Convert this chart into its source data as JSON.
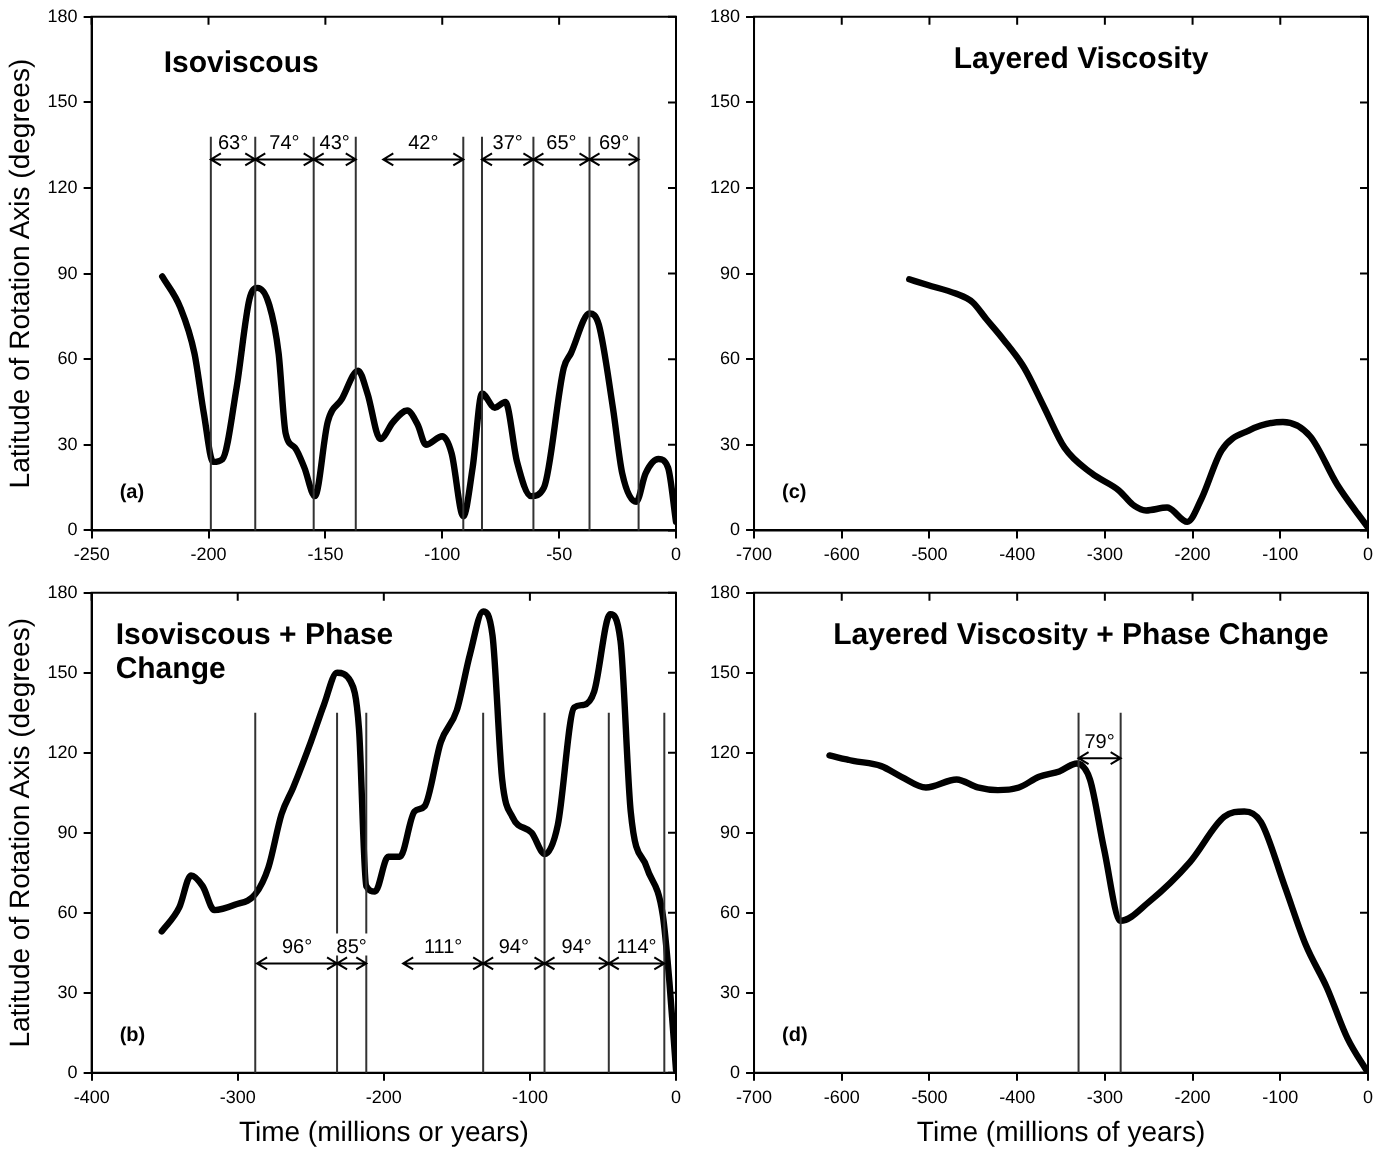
{
  "chart_data": [
    {
      "type": "line",
      "title": "Isoviscous",
      "ylabel": "Latitude of Rotation Axis (degrees)",
      "xlim": [
        -250,
        0
      ],
      "xticks": [
        -250,
        -200,
        -150,
        -100,
        -50,
        0
      ],
      "ylim": [
        0,
        180
      ],
      "yticks": [
        0,
        30,
        60,
        90,
        120,
        150,
        180
      ],
      "grid": false,
      "legend": false,
      "marker": "none",
      "line_style": "solid",
      "series": [
        {
          "color": "#000000",
          "x": [
            -219.8,
            -212,
            -206,
            -202,
            -198,
            -194,
            -188,
            -182.5,
            -179,
            -174,
            -170,
            -167,
            -163,
            -159,
            -154.5,
            -149,
            -143,
            -136,
            -132,
            -126.5,
            -121,
            -115,
            -110.5,
            -107,
            -100,
            -96,
            -91,
            -87,
            -83,
            -77.5,
            -73,
            -68,
            -62,
            -56.5,
            -48,
            -45,
            -37,
            -33,
            -27,
            -23,
            -17,
            -13,
            -7.5,
            -3.4,
            0
          ],
          "values": [
            89,
            78,
            62,
            41,
            24,
            25,
            50,
            81,
            85,
            79,
            62,
            34,
            29,
            22,
            12,
            38,
            46,
            56,
            48,
            32,
            38,
            42,
            37,
            30,
            33,
            27,
            5,
            22,
            48,
            43,
            45,
            24,
            12,
            15,
            57,
            62,
            76,
            72,
            43,
            20,
            10,
            20,
            25,
            22,
            3
          ]
        }
      ],
      "ref_lines": [
        {
          "axis": "x",
          "value": -199
        },
        {
          "axis": "x",
          "value": -180
        },
        {
          "axis": "x",
          "value": -155
        },
        {
          "axis": "x",
          "value": -137
        },
        {
          "axis": "x",
          "value": -91
        },
        {
          "axis": "x",
          "value": -83
        },
        {
          "axis": "x",
          "value": -61
        },
        {
          "axis": "x",
          "value": -37
        },
        {
          "axis": "x",
          "value": -16
        }
      ],
      "annotations": [
        "(a)",
        {
          "text": "63°",
          "x": -180,
          "y": 130
        },
        {
          "text": "74°",
          "x": -155,
          "y": 130
        },
        {
          "text": "43°",
          "x": -137,
          "y": 130
        },
        {
          "text": "42°",
          "x": -91,
          "y": 130
        },
        {
          "text": "37°",
          "x": -61,
          "y": 130
        },
        {
          "text": "65°",
          "x": -37,
          "y": 130
        },
        {
          "text": "69°",
          "x": -16,
          "y": 130
        }
      ]
    },
    {
      "type": "line",
      "title": "Layered Viscosity",
      "xlim": [
        -700,
        0
      ],
      "xticks": [
        -700,
        -600,
        -500,
        -400,
        -300,
        -200,
        -100,
        0
      ],
      "ylim": [
        0,
        180
      ],
      "yticks": [
        0,
        30,
        60,
        90,
        120,
        150,
        180
      ],
      "grid": false,
      "legend": false,
      "marker": "none",
      "line_style": "solid",
      "series": [
        {
          "color": "#000000",
          "x": [
            -523,
            -502,
            -470,
            -451,
            -435,
            -416,
            -392,
            -369,
            -346,
            -315,
            -284,
            -268,
            -253,
            -229,
            -206,
            -190,
            -167,
            -136,
            -97,
            -66,
            -35,
            0
          ],
          "values": [
            88,
            86,
            83,
            80,
            74,
            67,
            57,
            43,
            29,
            20,
            14,
            9,
            7,
            8,
            3,
            11,
            28,
            35,
            38,
            33,
            16,
            1
          ]
        }
      ],
      "annotations": [
        "(c)"
      ]
    },
    {
      "type": "line",
      "title": "Isoviscous + Phase Change",
      "xlabel": "Time (millions or years)",
      "ylabel": "Latitude of Rotation Axis (degrees)",
      "xlim": [
        -400,
        0
      ],
      "xticks": [
        -400,
        -300,
        -200,
        -100,
        0
      ],
      "ylim": [
        0,
        180
      ],
      "yticks": [
        0,
        30,
        60,
        90,
        120,
        150,
        180
      ],
      "grid": false,
      "legend": false,
      "marker": "none",
      "line_style": "solid",
      "series": [
        {
          "color": "#000000",
          "x": [
            -352,
            -340,
            -332,
            -324,
            -316,
            -302,
            -288,
            -279,
            -270,
            -262,
            -250,
            -241,
            -232,
            -223,
            -217,
            -212,
            -206,
            -197,
            -189,
            -179,
            -172,
            -161,
            -150,
            -141,
            -132,
            -125.6,
            -119,
            -112,
            -98.8,
            -89.8,
            -80.9,
            -69.7,
            -63,
            -56,
            -45,
            -38,
            -31,
            -20,
            -9,
            -4.5,
            0
          ],
          "values": [
            53,
            62,
            74,
            70,
            61,
            63,
            67,
            77,
            97,
            107,
            124,
            138,
            150,
            147,
            129,
            70,
            68,
            81,
            81,
            98,
            100,
            124,
            136,
            157,
            173,
            164,
            110,
            96,
            90,
            82,
            93,
            137,
            138,
            143,
            172,
            162,
            98,
            77,
            59,
            34,
            1
          ]
        }
      ],
      "ref_lines": [
        {
          "axis": "x",
          "value": -288
        },
        {
          "axis": "x",
          "value": -232
        },
        {
          "axis": "x",
          "value": -212
        },
        {
          "axis": "x",
          "value": -132
        },
        {
          "axis": "x",
          "value": -90
        },
        {
          "axis": "x",
          "value": -46
        },
        {
          "axis": "x",
          "value": -8
        }
      ],
      "annotations": [
        "(b)",
        {
          "text": "96°",
          "x": -232,
          "y": 41
        },
        {
          "text": "85°",
          "x": -212,
          "y": 41
        },
        {
          "text": "111°",
          "x": -132,
          "y": 41
        },
        {
          "text": "94°",
          "x": -90,
          "y": 41
        },
        {
          "text": "94°",
          "x": -46,
          "y": 41
        },
        {
          "text": "114°",
          "x": -8,
          "y": 41
        }
      ]
    },
    {
      "type": "line",
      "title": "Layered Viscosity + Phase Change",
      "xlabel": "Time (millions of years)",
      "xlim": [
        -700,
        0
      ],
      "xticks": [
        -700,
        -600,
        -500,
        -400,
        -300,
        -200,
        -100,
        0
      ],
      "ylim": [
        0,
        180
      ],
      "yticks": [
        0,
        30,
        60,
        90,
        120,
        150,
        180
      ],
      "grid": false,
      "legend": false,
      "marker": "none",
      "line_style": "solid",
      "series": [
        {
          "color": "#000000",
          "x": [
            -614,
            -587,
            -555,
            -532,
            -504,
            -469,
            -445,
            -422,
            -398,
            -375,
            -352,
            -332,
            -317,
            -301,
            -282,
            -250,
            -203,
            -164,
            -141,
            -122,
            -95,
            -71,
            -47,
            -23.5,
            0
          ],
          "values": [
            119,
            117,
            115,
            111,
            107,
            110,
            107,
            106,
            107,
            111,
            113,
            116,
            110,
            84,
            57,
            64,
            79,
            96,
            98,
            94,
            70,
            48,
            32,
            13,
            0
          ]
        }
      ],
      "ref_lines": [
        {
          "axis": "x",
          "value": -330
        },
        {
          "axis": "x",
          "value": -282
        }
      ],
      "annotations": [
        "(d)",
        {
          "text": "79°",
          "x": -282,
          "y": 118
        }
      ]
    }
  ]
}
